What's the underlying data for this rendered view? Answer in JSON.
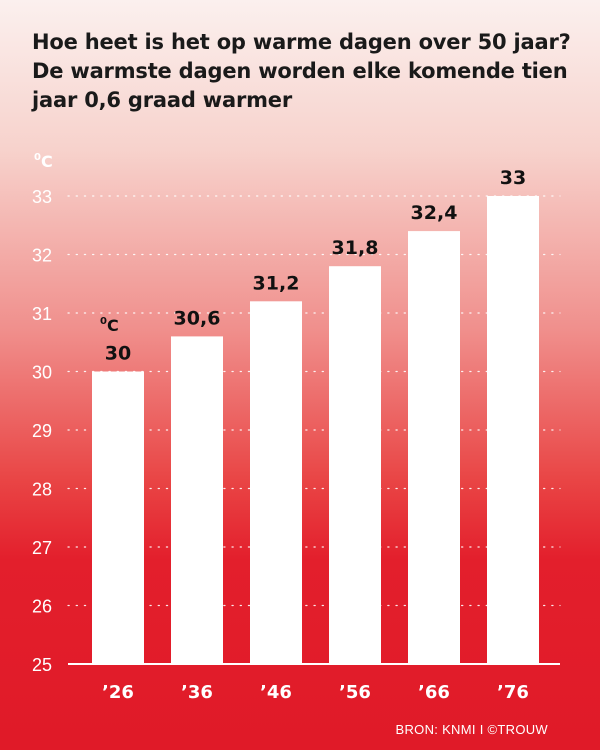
{
  "title_lines": [
    "Hoe heet is het op warme dagen over 50 jaar?",
    "De warmste dagen worden elke komende tien",
    "jaar 0,6 graad warmer"
  ],
  "unit_degree": "0",
  "unit_letter": "C",
  "source": "BRON: KNMI I ©TROUW",
  "colors": {
    "bar": "#ffffff",
    "label": "#111111",
    "axis_text": "#ffffff",
    "background_top": "#fbf0ee",
    "background_bottom": "#e01a28"
  },
  "chart_data": {
    "type": "bar",
    "categories": [
      "’26",
      "’36",
      "’46",
      "’56",
      "’66",
      "’76"
    ],
    "values": [
      30,
      30.6,
      31.2,
      31.8,
      32.4,
      33
    ],
    "value_labels": [
      "30",
      "30,6",
      "31,2",
      "31,8",
      "32,4",
      "33"
    ],
    "ylim": [
      25,
      33
    ],
    "yticks": [
      25,
      26,
      27,
      28,
      29,
      30,
      31,
      32,
      33
    ],
    "ylabel": "°C",
    "grid": "dotted",
    "title": "Hoe heet is het op warme dagen over 50 jaar? De warmste dagen worden elke komende tien jaar 0,6 graad warmer"
  }
}
